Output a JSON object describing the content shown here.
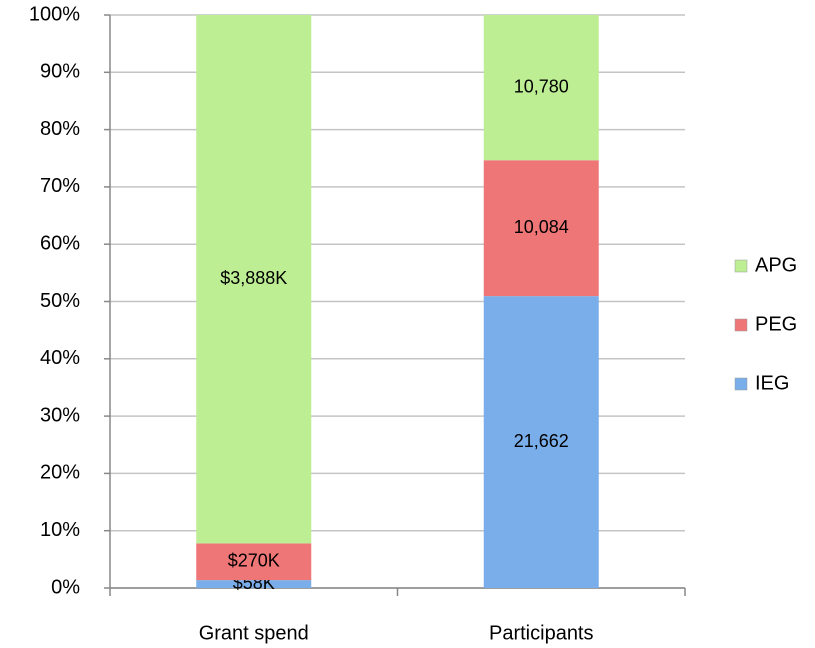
{
  "chart_data": {
    "type": "bar",
    "stacking": "percent",
    "categories": [
      "Grant spend",
      "Participants"
    ],
    "series": [
      {
        "name": "IEG",
        "color": "#7aaeea",
        "values": [
          58000,
          21662
        ],
        "value_labels": [
          "$58K",
          "21,662"
        ]
      },
      {
        "name": "PEG",
        "color": "#ef7676",
        "values": [
          270000,
          10084
        ],
        "value_labels": [
          "$270K",
          "10,084"
        ]
      },
      {
        "name": "APG",
        "color": "#bdee94",
        "values": [
          3888000,
          10780
        ],
        "value_labels": [
          "$3,888K",
          "10,780"
        ]
      }
    ],
    "ylim": [
      0,
      100
    ],
    "yticks": [
      {
        "value": 0,
        "label": "0%"
      },
      {
        "value": 10,
        "label": "10%"
      },
      {
        "value": 20,
        "label": "20%"
      },
      {
        "value": 30,
        "label": "30%"
      },
      {
        "value": 40,
        "label": "40%"
      },
      {
        "value": 50,
        "label": "50%"
      },
      {
        "value": 60,
        "label": "60%"
      },
      {
        "value": 70,
        "label": "70%"
      },
      {
        "value": 80,
        "label": "80%"
      },
      {
        "value": 90,
        "label": "90%"
      },
      {
        "value": 100,
        "label": "100%"
      }
    ],
    "grid": true,
    "legend": "right"
  }
}
